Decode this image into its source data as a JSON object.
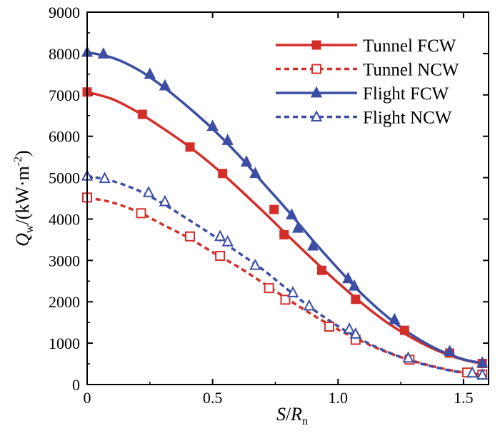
{
  "chart_data": {
    "type": "line",
    "title": "",
    "xlabel": {
      "var": "S",
      "sep": "/",
      "var2": "R",
      "sub": "n"
    },
    "ylabel": {
      "var": "Q",
      "sub": "w",
      "unit": "/(kW·m",
      "sup": "-2",
      "close": ")"
    },
    "xlim": [
      0,
      1.6
    ],
    "ylim": [
      0,
      9000
    ],
    "xticks": [
      0,
      0.5,
      1.0,
      1.5
    ],
    "xtick_labels": [
      "0",
      "0.5",
      "1.0",
      "1.5"
    ],
    "yticks": [
      0,
      1000,
      2000,
      3000,
      4000,
      5000,
      6000,
      7000,
      8000,
      9000
    ],
    "ytick_labels": [
      "0",
      "1000",
      "2000",
      "3000",
      "4000",
      "5000",
      "6000",
      "7000",
      "8000",
      "9000"
    ],
    "legend_position": "top-right",
    "series": [
      {
        "name": "Tunnel FCW",
        "color": "#d42e2a",
        "line_style": "solid",
        "marker": "square-filled",
        "curve": [
          [
            0,
            7070
          ],
          [
            0.1,
            6900
          ],
          [
            0.2,
            6590
          ],
          [
            0.3,
            6200
          ],
          [
            0.4,
            5780
          ],
          [
            0.5,
            5300
          ],
          [
            0.6,
            4760
          ],
          [
            0.7,
            4190
          ],
          [
            0.8,
            3600
          ],
          [
            0.9,
            3020
          ],
          [
            1.0,
            2460
          ],
          [
            1.1,
            1940
          ],
          [
            1.2,
            1480
          ],
          [
            1.3,
            1110
          ],
          [
            1.4,
            810
          ],
          [
            1.5,
            600
          ],
          [
            1.575,
            510
          ]
        ],
        "markers": [
          [
            0.0,
            7070
          ],
          [
            0.22,
            6530
          ],
          [
            0.41,
            5740
          ],
          [
            0.54,
            5100
          ],
          [
            0.745,
            4230
          ],
          [
            0.785,
            3620
          ],
          [
            0.935,
            2760
          ],
          [
            1.07,
            2060
          ],
          [
            1.265,
            1310
          ],
          [
            1.445,
            760
          ],
          [
            1.575,
            510
          ]
        ]
      },
      {
        "name": "Tunnel NCW",
        "color": "#d42e2a",
        "line_style": "dashed",
        "marker": "square-open",
        "curve": [
          [
            0,
            4520
          ],
          [
            0.1,
            4400
          ],
          [
            0.2,
            4180
          ],
          [
            0.3,
            3870
          ],
          [
            0.4,
            3560
          ],
          [
            0.5,
            3200
          ],
          [
            0.6,
            2850
          ],
          [
            0.7,
            2460
          ],
          [
            0.8,
            2060
          ],
          [
            0.9,
            1680
          ],
          [
            1.0,
            1330
          ],
          [
            1.1,
            1030
          ],
          [
            1.2,
            770
          ],
          [
            1.3,
            570
          ],
          [
            1.4,
            410
          ],
          [
            1.5,
            290
          ],
          [
            1.575,
            240
          ]
        ],
        "markers": [
          [
            0.0,
            4520
          ],
          [
            0.215,
            4140
          ],
          [
            0.41,
            3580
          ],
          [
            0.53,
            3110
          ],
          [
            0.725,
            2330
          ],
          [
            0.79,
            2050
          ],
          [
            0.965,
            1400
          ],
          [
            1.07,
            1080
          ],
          [
            1.285,
            600
          ],
          [
            1.515,
            290
          ],
          [
            1.575,
            240
          ]
        ]
      },
      {
        "name": "Flight FCW",
        "color": "#3b4ea3",
        "line_style": "solid",
        "marker": "triangle-filled",
        "curve": [
          [
            0,
            8030
          ],
          [
            0.1,
            7900
          ],
          [
            0.2,
            7620
          ],
          [
            0.3,
            7210
          ],
          [
            0.4,
            6720
          ],
          [
            0.5,
            6180
          ],
          [
            0.6,
            5570
          ],
          [
            0.7,
            4880
          ],
          [
            0.8,
            4200
          ],
          [
            0.9,
            3480
          ],
          [
            1.0,
            2800
          ],
          [
            1.1,
            2160
          ],
          [
            1.2,
            1620
          ],
          [
            1.3,
            1180
          ],
          [
            1.4,
            840
          ],
          [
            1.5,
            610
          ],
          [
            1.575,
            520
          ]
        ],
        "markers": [
          [
            0.0,
            8030
          ],
          [
            0.065,
            7990
          ],
          [
            0.25,
            7500
          ],
          [
            0.31,
            7220
          ],
          [
            0.5,
            6240
          ],
          [
            0.56,
            5900
          ],
          [
            0.635,
            5380
          ],
          [
            0.67,
            5100
          ],
          [
            0.815,
            4100
          ],
          [
            0.84,
            3780
          ],
          [
            0.9,
            3350
          ],
          [
            1.04,
            2560
          ],
          [
            1.065,
            2380
          ],
          [
            1.225,
            1570
          ],
          [
            1.445,
            800
          ],
          [
            1.575,
            520
          ]
        ]
      },
      {
        "name": "Flight NCW",
        "color": "#3b4ea3",
        "line_style": "dashed",
        "marker": "triangle-open",
        "curve": [
          [
            0,
            5040
          ],
          [
            0.1,
            4920
          ],
          [
            0.2,
            4700
          ],
          [
            0.3,
            4380
          ],
          [
            0.4,
            4000
          ],
          [
            0.5,
            3610
          ],
          [
            0.6,
            3200
          ],
          [
            0.7,
            2780
          ],
          [
            0.8,
            2290
          ],
          [
            0.9,
            1820
          ],
          [
            1.0,
            1410
          ],
          [
            1.1,
            1060
          ],
          [
            1.2,
            780
          ],
          [
            1.3,
            560
          ],
          [
            1.4,
            400
          ],
          [
            1.5,
            280
          ],
          [
            1.575,
            230
          ]
        ],
        "markers": [
          [
            0.0,
            5040
          ],
          [
            0.07,
            4980
          ],
          [
            0.245,
            4640
          ],
          [
            0.31,
            4420
          ],
          [
            0.53,
            3580
          ],
          [
            0.56,
            3450
          ],
          [
            0.67,
            2880
          ],
          [
            0.82,
            2220
          ],
          [
            0.885,
            1900
          ],
          [
            1.045,
            1340
          ],
          [
            1.07,
            1220
          ],
          [
            1.28,
            640
          ],
          [
            1.535,
            280
          ],
          [
            1.575,
            230
          ]
        ]
      }
    ]
  }
}
